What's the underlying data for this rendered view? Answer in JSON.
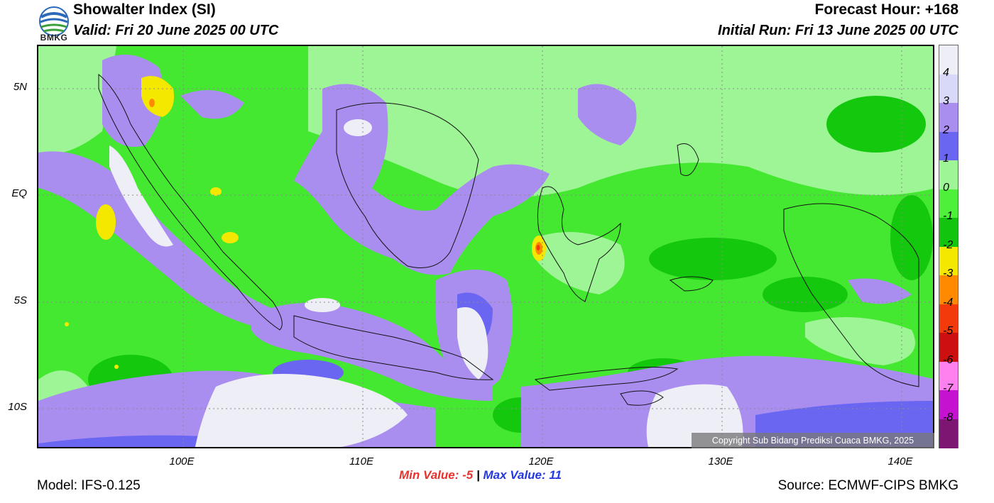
{
  "header": {
    "title": "Showalter Index (SI)",
    "valid": "Valid: Fri 20 June 2025 00 UTC",
    "forecast_hour": "Forecast Hour: +168",
    "initial_run": "Initial Run: Fri 13 June 2025 00 UTC"
  },
  "logo": {
    "text": "BMKG"
  },
  "map": {
    "lat_labels": [
      "5N",
      "EQ",
      "5S",
      "10S"
    ],
    "lon_labels": [
      "100E",
      "110E",
      "120E",
      "130E",
      "140E"
    ],
    "copyright": "Copyright Sub Bidang Prediksi Cuaca BMKG, 2025"
  },
  "colorbar": {
    "colors": [
      "#eeeef6",
      "#d8d8f8",
      "#a98ef0",
      "#6a66f2",
      "#9ef596",
      "#4ef03a",
      "#12c40e",
      "#f5e800",
      "#ff8a00",
      "#f23a0a",
      "#cc1010",
      "#ff80ef",
      "#c412d0",
      "#7c1672"
    ],
    "labels": [
      "4",
      "3",
      "2",
      "1",
      "0",
      "-1",
      "-2",
      "-3",
      "-4",
      "-5",
      "-6",
      "-7",
      "-8"
    ]
  },
  "stats": {
    "min_label": "Min Value:",
    "min_value": "-5",
    "separator": "|",
    "max_label": "Max Value:",
    "max_value": "11"
  },
  "footer": {
    "model": "Model: IFS-0.125",
    "source": "Source: ECMWF-CIPS BMKG"
  }
}
